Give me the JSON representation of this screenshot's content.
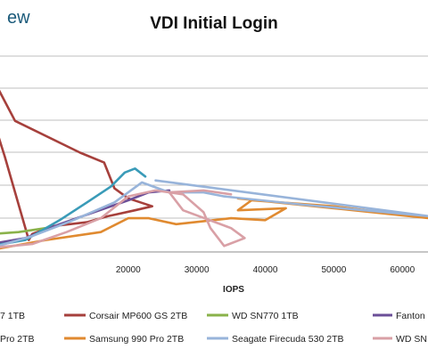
{
  "brand": {
    "text": "ew"
  },
  "chart_data": {
    "type": "line",
    "title": "VDI Initial Login",
    "xlabel": "IOPS",
    "ylabel": "",
    "xlim": [
      0,
      64000
    ],
    "ylim": [
      0,
      10
    ],
    "x_ticks": [
      "20000",
      "30000",
      "40000",
      "50000",
      "60000"
    ],
    "grid": "horizontal",
    "legend_position": "bottom",
    "series": [
      {
        "name": "7 1TB",
        "color": "#3a5f93",
        "points": []
      },
      {
        "name": "Corsair MP600 GS 2TB",
        "color": "#a6403c",
        "points": [
          [
            0,
            8.9
          ],
          [
            3500,
            6.6
          ],
          [
            13000,
            5.0
          ],
          [
            16500,
            4.5
          ],
          [
            18000,
            3.2
          ],
          [
            20000,
            2.7
          ],
          [
            23500,
            2.3
          ],
          [
            21000,
            2.1
          ],
          [
            17000,
            1.8
          ],
          [
            14000,
            1.5
          ],
          [
            9000,
            1.3
          ],
          [
            6000,
            0.9
          ],
          [
            5500,
            0.6
          ],
          [
            2000,
            4.8
          ],
          [
            0,
            7.0
          ]
        ]
      },
      {
        "name": "WD SN770 1TB",
        "color": "#8ab24a",
        "points": [
          [
            0,
            0.9
          ],
          [
            4000,
            1.0
          ],
          [
            8000,
            1.2
          ]
        ]
      },
      {
        "name": "Fanton",
        "color": "#6b4f98",
        "points": [
          [
            0,
            0.4
          ],
          [
            5000,
            0.7
          ],
          [
            10000,
            1.4
          ],
          [
            15000,
            2.0
          ],
          [
            20000,
            2.6
          ],
          [
            23000,
            3.0
          ],
          [
            26000,
            3.1
          ]
        ]
      },
      {
        "name": "Pro 2TB",
        "color": "#3a9bb8",
        "points": [
          [
            0,
            0.3
          ],
          [
            5000,
            0.6
          ],
          [
            10000,
            1.6
          ],
          [
            14000,
            2.5
          ],
          [
            17500,
            3.3
          ],
          [
            19500,
            4.0
          ],
          [
            21000,
            4.2
          ],
          [
            22500,
            3.8
          ]
        ]
      },
      {
        "name": "Samsung 990 Pro 2TB",
        "color": "#e08a30",
        "points": [
          [
            0,
            0.1
          ],
          [
            8000,
            0.6
          ],
          [
            16000,
            1.0
          ],
          [
            20000,
            1.7
          ],
          [
            23000,
            1.7
          ],
          [
            27000,
            1.4
          ],
          [
            35000,
            1.7
          ],
          [
            40000,
            1.6
          ],
          [
            43000,
            2.2
          ],
          [
            36000,
            2.1
          ],
          [
            38000,
            2.6
          ],
          [
            50000,
            2.3
          ],
          [
            64000,
            1.7
          ],
          [
            50000,
            2.2
          ],
          [
            36000,
            2.7
          ]
        ]
      },
      {
        "name": "Seagate Firecuda 530 2TB",
        "color": "#98b4da",
        "points": [
          [
            0,
            0.2
          ],
          [
            6000,
            0.8
          ],
          [
            12000,
            1.6
          ],
          [
            18000,
            2.5
          ],
          [
            22000,
            3.5
          ],
          [
            26000,
            3.0
          ],
          [
            31000,
            3.0
          ],
          [
            34000,
            2.8
          ],
          [
            45000,
            2.4
          ],
          [
            64000,
            1.8
          ],
          [
            24000,
            3.6
          ]
        ]
      },
      {
        "name": "WD SN",
        "color": "#d9a0a6",
        "points": [
          [
            0,
            0.2
          ],
          [
            6000,
            0.4
          ],
          [
            11000,
            1.0
          ],
          [
            16000,
            1.7
          ],
          [
            20000,
            2.8
          ],
          [
            24000,
            3.1
          ],
          [
            28000,
            2.9
          ],
          [
            31000,
            2.0
          ],
          [
            32000,
            1.2
          ],
          [
            34000,
            0.3
          ],
          [
            37000,
            0.7
          ],
          [
            35000,
            1.2
          ],
          [
            28000,
            2.1
          ],
          [
            26000,
            3.0
          ],
          [
            31000,
            3.1
          ],
          [
            35000,
            2.9
          ]
        ]
      }
    ]
  }
}
